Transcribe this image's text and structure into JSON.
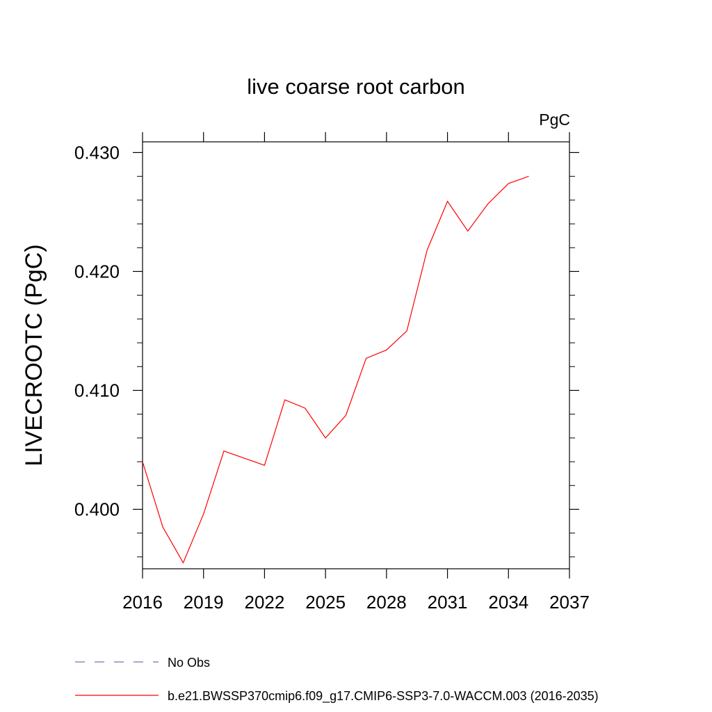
{
  "chart_data": {
    "type": "line",
    "title": "live coarse root carbon",
    "units_label": "PgC",
    "ylabel": "LIVECROOTC  (PgC)",
    "xlabel": "",
    "xlim": [
      2016,
      2037
    ],
    "ylim": [
      0.395,
      0.4309
    ],
    "x_ticks": [
      2016,
      2019,
      2022,
      2025,
      2028,
      2031,
      2034,
      2037
    ],
    "x_tick_labels": [
      "2016",
      "2019",
      "2022",
      "2025",
      "2028",
      "2031",
      "2034",
      "2037"
    ],
    "y_ticks": [
      0.4,
      0.41,
      0.42,
      0.43
    ],
    "y_tick_labels": [
      "0.400",
      "0.410",
      "0.420",
      "0.430"
    ],
    "grid": false,
    "legend_placement": "bottom-left",
    "series": [
      {
        "name": "b.e21.BWSSP370cmip6.f09_g17.CMIP6-SSP3-7.0-WACCM.003 (2016-2035)",
        "color": "#ff0000",
        "style": "solid",
        "x": [
          2016,
          2017,
          2018,
          2019,
          2020,
          2021,
          2022,
          2023,
          2024,
          2025,
          2026,
          2027,
          2028,
          2029,
          2030,
          2031,
          2032,
          2033,
          2034,
          2035
        ],
        "y": [
          0.404,
          0.3985,
          0.3955,
          0.3996,
          0.4049,
          0.4043,
          0.4037,
          0.4092,
          0.4085,
          0.406,
          0.4079,
          0.4127,
          0.4134,
          0.415,
          0.4218,
          0.4259,
          0.4234,
          0.4257,
          0.4274,
          0.428
        ]
      }
    ],
    "legend": [
      {
        "label": "No Obs",
        "color": "#7a6fb0",
        "style": "dashed"
      },
      {
        "label": "b.e21.BWSSP370cmip6.f09_g17.CMIP6-SSP3-7.0-WACCM.003 (2016-2035)",
        "color": "#ff0000",
        "style": "solid"
      }
    ]
  }
}
